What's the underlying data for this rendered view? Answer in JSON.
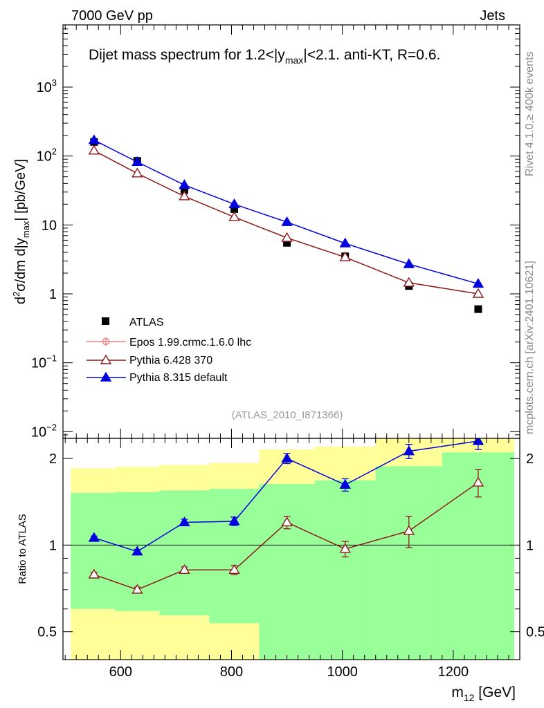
{
  "header": {
    "left": "7000 GeV pp",
    "right": "Jets"
  },
  "side_texts": {
    "rivet_a": "Rivet 4.1.0,",
    "rivet_ge": "≥",
    "rivet_b": " 400k events",
    "mcplots": "mcplots.cern.ch [arXiv:2401.10621]"
  },
  "analysis_tag": "(ATLAS_2010_I871366)",
  "colors": {
    "data": "#000000",
    "epos": "#f08080",
    "pythia6": "#8b1a1a",
    "pythia8": "#0000dd",
    "band_outer": "#ffff99",
    "band_inner": "#99ff99"
  },
  "chart_data": [
    {
      "type": "scatter",
      "panel": "main",
      "log_y": true,
      "title_parts": {
        "pre": "Dijet mass spectrum for 1.2<|y",
        "sub": "max",
        "post": "|<2.1.  anti-KT, R=0.6."
      },
      "ylabel_parts": {
        "d": "d",
        "exp": "2",
        "mid": "σ/dm d|y",
        "sub": "max",
        "post": "| [pb/GeV]"
      },
      "xlim": [
        496,
        1320
      ],
      "ylim": [
        0.008,
        8000
      ],
      "y_ticks": [
        {
          "value": 1000,
          "base": "10",
          "exp": "3"
        },
        {
          "value": 100,
          "base": "10",
          "exp": "2"
        },
        {
          "value": 10,
          "base": "10",
          "exp": ""
        },
        {
          "value": 1,
          "base": "1",
          "exp": ""
        },
        {
          "value": 0.1,
          "base": "10",
          "exp": "−1"
        },
        {
          "value": 0.01,
          "base": "10",
          "exp": "−2"
        }
      ],
      "legend": {
        "position": "lower-left",
        "entries": [
          "ATLAS",
          "Epos 1.99.crmc.1.6.0 lhc",
          "Pythia 6.428 370",
          "Pythia 8.315 default"
        ]
      },
      "series": [
        {
          "name": "ATLAS",
          "marker": "square",
          "x": [
            552,
            630,
            715,
            805,
            900,
            1005,
            1120,
            1245
          ],
          "y": [
            160,
            85,
            32,
            17,
            5.5,
            3.5,
            1.3,
            0.6
          ]
        },
        {
          "name": "Pythia 6.428 370",
          "marker": "open-triangle",
          "x": [
            552,
            630,
            715,
            805,
            900,
            1005,
            1120,
            1245
          ],
          "y": [
            120,
            56,
            26,
            13,
            6.5,
            3.4,
            1.45,
            1.0
          ]
        },
        {
          "name": "Pythia 8.315 default",
          "marker": "filled-triangle",
          "x": [
            552,
            630,
            715,
            805,
            900,
            1005,
            1120,
            1245
          ],
          "y": [
            170,
            82,
            38,
            20,
            11,
            5.4,
            2.7,
            1.4
          ]
        }
      ]
    },
    {
      "type": "scatter",
      "panel": "ratio",
      "log_y": true,
      "ylabel": "Ratio to ATLAS",
      "xlabel_parts": {
        "pre": "m",
        "sub": "12",
        "post": " [GeV]"
      },
      "xlim": [
        496,
        1320
      ],
      "ylim": [
        0.4,
        2.35
      ],
      "x_ticks": [
        600,
        800,
        1000,
        1200
      ],
      "y_ticks": [
        {
          "value": 0.5,
          "label": "0.5"
        },
        {
          "value": 1,
          "label": "1"
        },
        {
          "value": 2,
          "label": "2"
        }
      ],
      "bins": [
        {
          "lo": 510,
          "hi": 590,
          "inner": [
            0.6,
            1.52
          ],
          "outer": [
            0.4,
            1.85
          ]
        },
        {
          "lo": 590,
          "hi": 670,
          "inner": [
            0.59,
            1.53
          ],
          "outer": [
            0.4,
            1.87
          ]
        },
        {
          "lo": 670,
          "hi": 760,
          "inner": [
            0.57,
            1.55
          ],
          "outer": [
            0.4,
            1.9
          ]
        },
        {
          "lo": 760,
          "hi": 850,
          "inner": [
            0.535,
            1.57
          ],
          "outer": [
            0.4,
            1.93
          ]
        },
        {
          "lo": 850,
          "hi": 950,
          "inner": [
            0.4,
            1.63
          ],
          "outer": [
            0.385,
            2.15
          ]
        },
        {
          "lo": 950,
          "hi": 1060,
          "inner": [
            0.4,
            1.68
          ],
          "outer": [
            0.4,
            2.2
          ]
        },
        {
          "lo": 1060,
          "hi": 1180,
          "inner": [
            0.4,
            1.88
          ],
          "outer": [
            0.4,
            2.4
          ]
        },
        {
          "lo": 1180,
          "hi": 1310,
          "inner": [
            0.4,
            2.1
          ],
          "outer": [
            0.4,
            2.4
          ]
        }
      ],
      "series": [
        {
          "name": "Pythia 6.428 370",
          "marker": "open-triangle",
          "x": [
            552,
            630,
            715,
            805,
            900,
            1005,
            1120,
            1245
          ],
          "y": [
            0.79,
            0.7,
            0.82,
            0.82,
            1.2,
            0.97,
            1.12,
            1.65
          ],
          "err": [
            0.015,
            0.015,
            0.02,
            0.03,
            0.06,
            0.06,
            0.14,
            0.18
          ]
        },
        {
          "name": "Pythia 8.315 default",
          "marker": "filled-triangle",
          "x": [
            552,
            630,
            715,
            805,
            900,
            1005,
            1120,
            1245
          ],
          "y": [
            1.06,
            0.95,
            1.2,
            1.21,
            2.0,
            1.62,
            2.12,
            2.3
          ],
          "err": [
            0.015,
            0.015,
            0.03,
            0.04,
            0.08,
            0.08,
            0.12,
            0.15
          ]
        }
      ]
    }
  ]
}
